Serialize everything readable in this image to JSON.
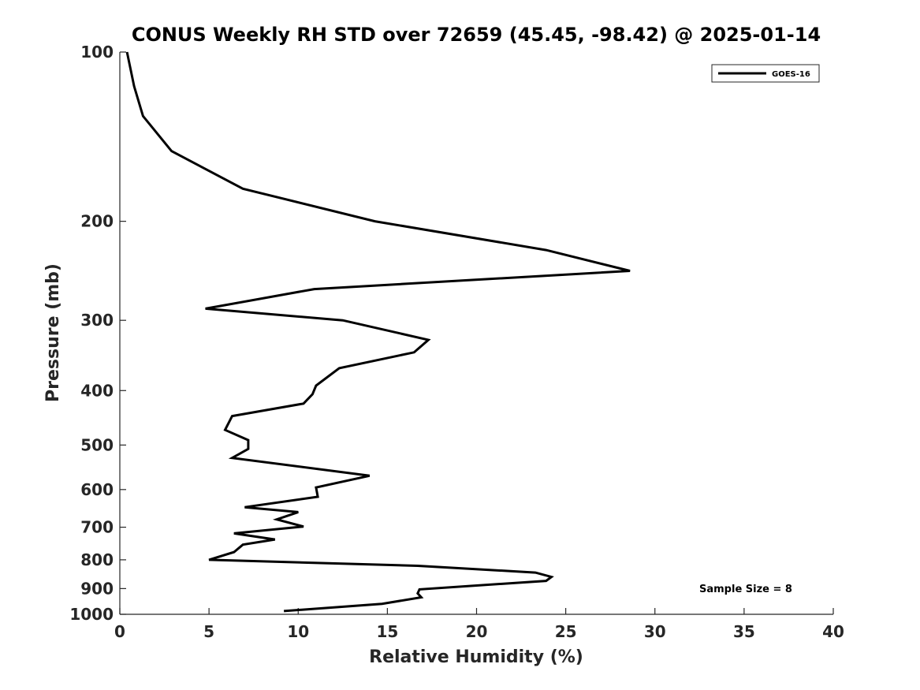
{
  "chart_data": {
    "type": "line",
    "title": "CONUS Weekly RH STD over 72659 (45.45, -98.42) @ 2025-01-14",
    "xlabel": "Relative Humidity (%)",
    "ylabel": "Pressure (mb)",
    "xlim": [
      0,
      40
    ],
    "ylim": [
      1000,
      100
    ],
    "yscale": "log",
    "y_inverted": true,
    "xticks": [
      0,
      5,
      10,
      15,
      20,
      25,
      30,
      35,
      40
    ],
    "yticks": [
      100,
      200,
      300,
      400,
      500,
      600,
      700,
      800,
      900,
      1000
    ],
    "grid": false,
    "legend": {
      "position": "top-right",
      "entries": [
        "GOES-16"
      ]
    },
    "annotation": "Sample Size = 8",
    "series": [
      {
        "name": "GOES-16",
        "color": "#000000",
        "x": [
          0.4,
          0.8,
          1.3,
          2.9,
          6.9,
          14.3,
          23.9,
          28.6,
          10.9,
          4.8,
          12.5,
          17.3,
          16.5,
          12.3,
          11.0,
          10.8,
          10.3,
          6.3,
          5.9,
          7.2,
          7.2,
          6.3,
          14.0,
          11.0,
          11.1,
          7.0,
          10.0,
          8.8,
          10.3,
          6.4,
          8.7,
          6.9,
          6.4,
          5.0,
          16.7,
          23.3,
          24.2,
          23.9,
          16.8,
          16.7,
          16.9,
          14.7,
          9.2
        ],
        "y": [
          100,
          115,
          130,
          150,
          175,
          200,
          225,
          245,
          264,
          286,
          300,
          325,
          342,
          365,
          392,
          406,
          422,
          444,
          470,
          490,
          508,
          527,
          567,
          595,
          618,
          645,
          658,
          678,
          698,
          718,
          736,
          752,
          775,
          800,
          820,
          843,
          858,
          872,
          903,
          918,
          933,
          958,
          987
        ]
      }
    ]
  }
}
